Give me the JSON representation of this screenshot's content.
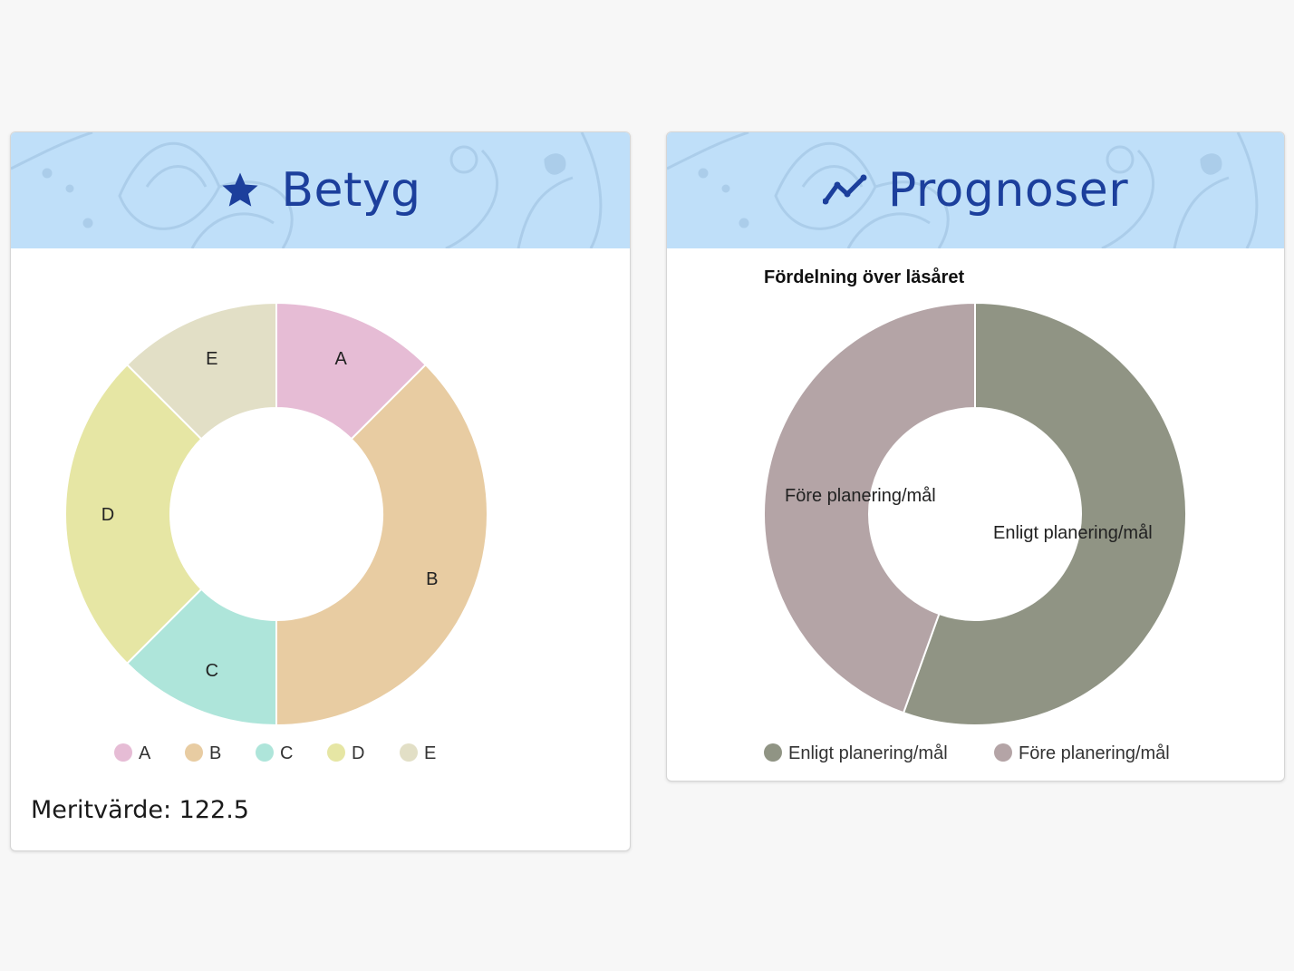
{
  "cards": {
    "betyg": {
      "title": "Betyg",
      "icon": "star-icon",
      "merit_label": "Meritvärde: 122.5"
    },
    "prognoser": {
      "title": "Prognoser",
      "icon": "trend-line-icon"
    }
  },
  "colors": {
    "header_bg": "#bfdff9",
    "title_color": "#1c3f9c"
  },
  "chart_data": [
    {
      "type": "pie",
      "variant": "donut",
      "title": "",
      "categories": [
        "A",
        "B",
        "C",
        "D",
        "E"
      ],
      "values": [
        12.5,
        37.5,
        12.5,
        25,
        12.5
      ],
      "colors": [
        "#e6bcd5",
        "#e8cca2",
        "#aee5da",
        "#e6e6a4",
        "#e2dfc6"
      ],
      "legend": "bottom"
    },
    {
      "type": "pie",
      "variant": "donut",
      "title": "Fördelning över läsåret",
      "categories": [
        "Enligt planering/mål",
        "Före planering/mål"
      ],
      "values": [
        55.5,
        44.5
      ],
      "colors": [
        "#909484",
        "#b4a4a6"
      ],
      "legend": "bottom"
    }
  ]
}
